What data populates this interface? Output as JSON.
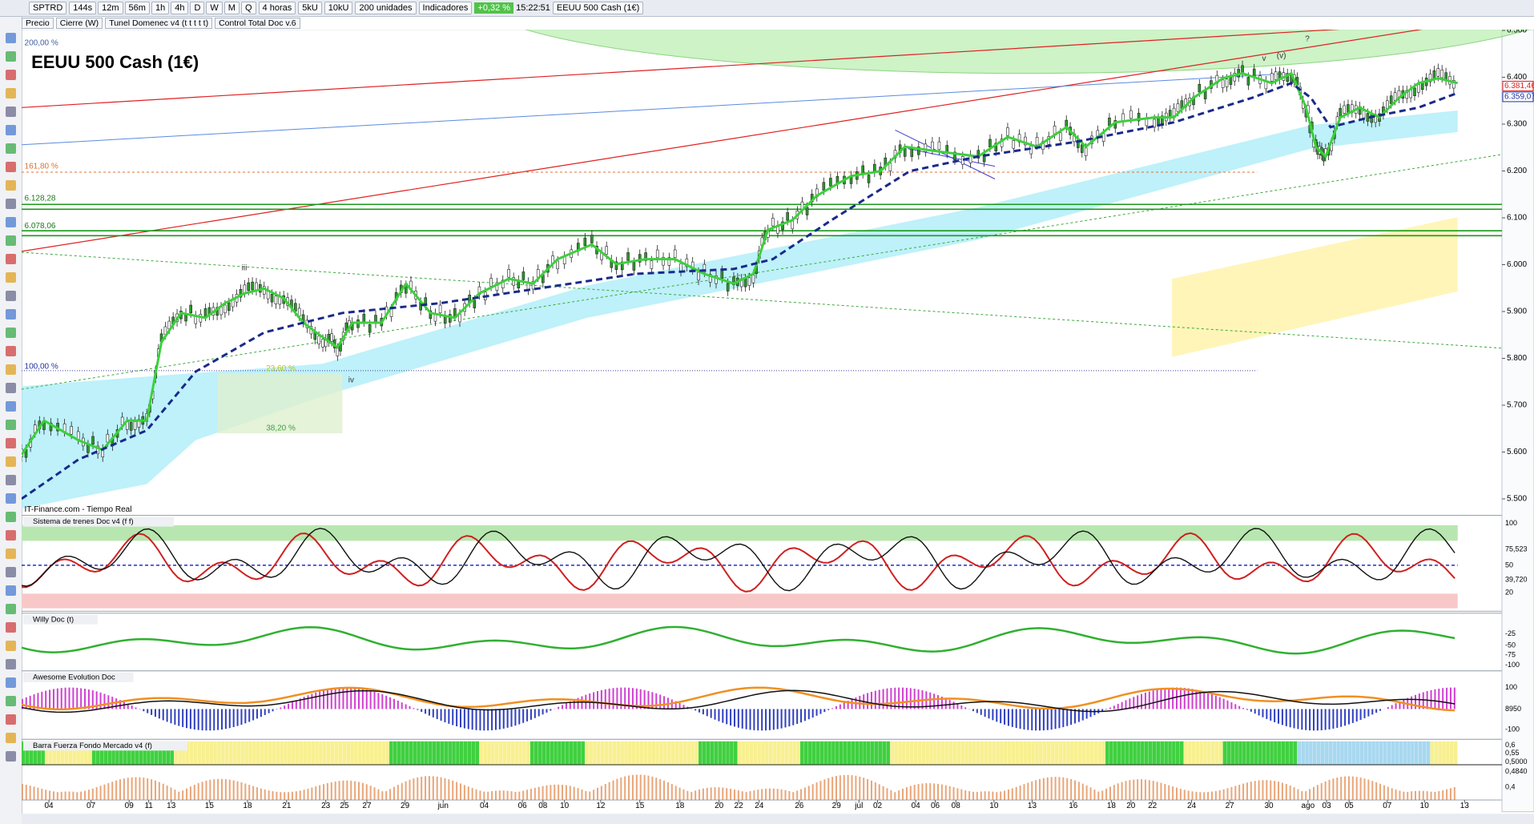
{
  "toolbar": {
    "symbol": "SPTRD",
    "timeframes": [
      "144s",
      "12m",
      "56m",
      "1h",
      "4h",
      "D",
      "W",
      "M",
      "Q"
    ],
    "period": "4 horas",
    "ticks": [
      "5kU",
      "10kU"
    ],
    "units": "200 unidades",
    "indicators": "Indicadores",
    "change": "+0,32 %",
    "time": "15:22:51",
    "instrument": "EEUU 500 Cash (1€)"
  },
  "subtoolbar": [
    "Precio",
    "Cierre (W)",
    "Tunel Domenec v4 (t t t t t)",
    "Control Total Doc v.6"
  ],
  "chart": {
    "title": "EEUU 500 Cash (1€)",
    "source": "IT-Finance.com - Tiempo Real",
    "price_ticks": [
      "6.500",
      "6.400",
      "6.300",
      "6.200",
      "6.100",
      "6.000",
      "5.900",
      "5.800",
      "5.700",
      "5.600",
      "5.500"
    ],
    "price_labels": [
      "6.381,46",
      "6.359,07"
    ],
    "fib_labels": [
      "200,00 %",
      "161,80 %",
      "100,00 %",
      "23,60 %",
      "38,20 %"
    ],
    "level_labels": [
      "6.128,28",
      "6.078,06"
    ],
    "wave_labels": [
      "iii",
      "iv",
      "(v)",
      "v",
      "?"
    ]
  },
  "panels": [
    {
      "title": "Sistema de trenes Doc v4 (f f)",
      "axis": [
        "100",
        "75,523",
        "50",
        "39,720",
        "20"
      ]
    },
    {
      "title": "Willy Doc (t)",
      "axis": [
        "-25",
        "-50",
        "-75",
        "-100"
      ]
    },
    {
      "title": "Awesome Evolution Doc",
      "axis": [
        "100",
        "8950",
        "-100"
      ]
    },
    {
      "title": "Barra Fuerza Fondo Mercado v4 (f)",
      "axis": [
        "0,6",
        "0,55",
        "0,5000",
        "0,4840",
        "0,4"
      ]
    }
  ],
  "dates": [
    "04",
    "07",
    "09",
    "11",
    "13",
    "15",
    "18",
    "21",
    "23",
    "25",
    "27",
    "29",
    "jun",
    "04",
    "06",
    "08",
    "10",
    "12",
    "15",
    "18",
    "20",
    "22",
    "24",
    "26",
    "29",
    "jul",
    "02",
    "04",
    "06",
    "08",
    "10",
    "13",
    "16",
    "18",
    "20",
    "22",
    "24",
    "27",
    "30",
    "ago",
    "03",
    "05",
    "07",
    "10",
    "13"
  ]
}
